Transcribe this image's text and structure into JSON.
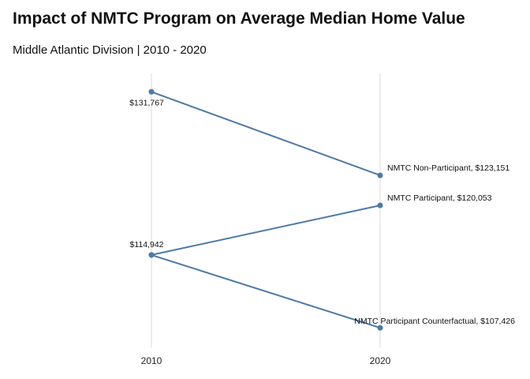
{
  "header": {
    "title": "Impact of NMTC Program on Average Median Home Value",
    "subtitle": "Middle Atlantic Division | 2010 - 2020"
  },
  "chart_data": {
    "type": "line",
    "title": "Impact of NMTC Program on Average Median Home Value",
    "subtitle": "Middle Atlantic Division | 2010 - 2020",
    "x": [
      "2010",
      "2020"
    ],
    "xlabel": "",
    "ylabel": "",
    "ylim": [
      105000,
      133500
    ],
    "grid": "vertical",
    "color": "#4a7aa7",
    "series": [
      {
        "name": "NMTC Non-Participant",
        "values": [
          131767,
          123151
        ],
        "label_start": "$131,767",
        "label_end": "NMTC Non-Participant, $123,151"
      },
      {
        "name": "NMTC Participant",
        "values": [
          114942,
          120053
        ],
        "label_start": "$114,942",
        "label_end": "NMTC Participant, $120,053"
      },
      {
        "name": "NMTC Participant Counterfactual",
        "values": [
          114942,
          107426
        ],
        "label_start": "",
        "label_end": "NMTC Participant Counterfactual, $107,426"
      }
    ]
  }
}
